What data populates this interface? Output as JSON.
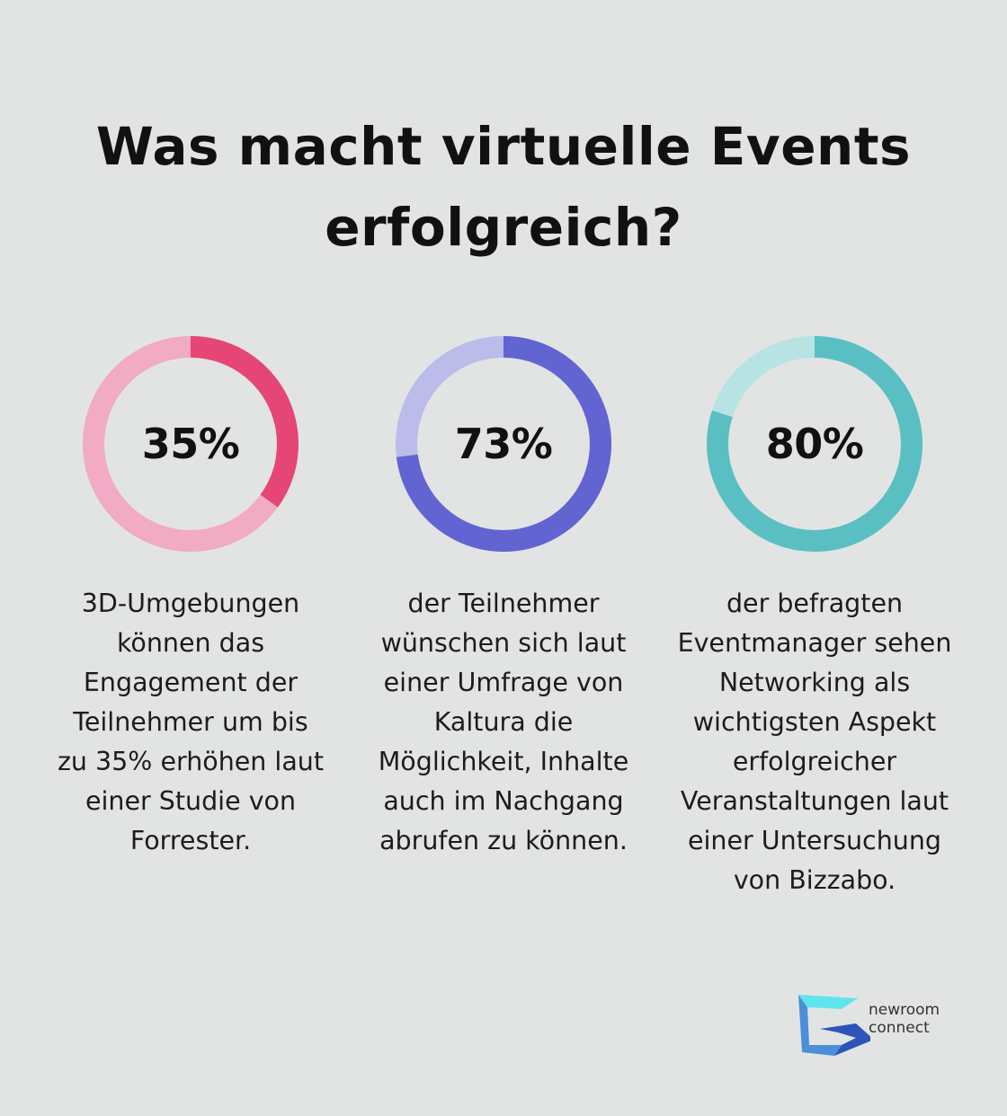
{
  "title_lines": [
    "Was macht virtuelle Events",
    "erfolgreich?"
  ],
  "chart_data": {
    "type": "pie",
    "charts": [
      {
        "value": 35,
        "label": "35%",
        "description_lines": [
          "3D-Umgebungen",
          "können das",
          "Engagement der",
          "Teilnehmer um bis",
          "zu 35% erhöhen laut",
          "einer Studie von",
          "Forrester."
        ],
        "color_fill": "#e54676",
        "color_track": "#f2abc4"
      },
      {
        "value": 73,
        "label": "73%",
        "description_lines": [
          "der Teilnehmer",
          "wünschen sich laut",
          "einer Umfrage von",
          "Kaltura die",
          "Möglichkeit, Inhalte",
          "auch im Nachgang",
          "abrufen zu können."
        ],
        "color_fill": "#6264d1",
        "color_track": "#bbbce9"
      },
      {
        "value": 80,
        "label": "80%",
        "description_lines": [
          "der befragten",
          "Eventmanager sehen",
          "Networking als",
          "wichtigsten Aspekt",
          "erfolgreicher",
          "Veranstaltungen laut",
          "einer Untersuchung",
          "von Bizzabo."
        ],
        "color_fill": "#5abfc2",
        "color_track": "#b7e3e4"
      }
    ]
  },
  "logo": {
    "lines": [
      "newroom",
      "connect"
    ],
    "icon": "newroom-connect-logo-icon",
    "colors": [
      "#5ee6ee",
      "#4a8fd8",
      "#2d55b8"
    ]
  }
}
